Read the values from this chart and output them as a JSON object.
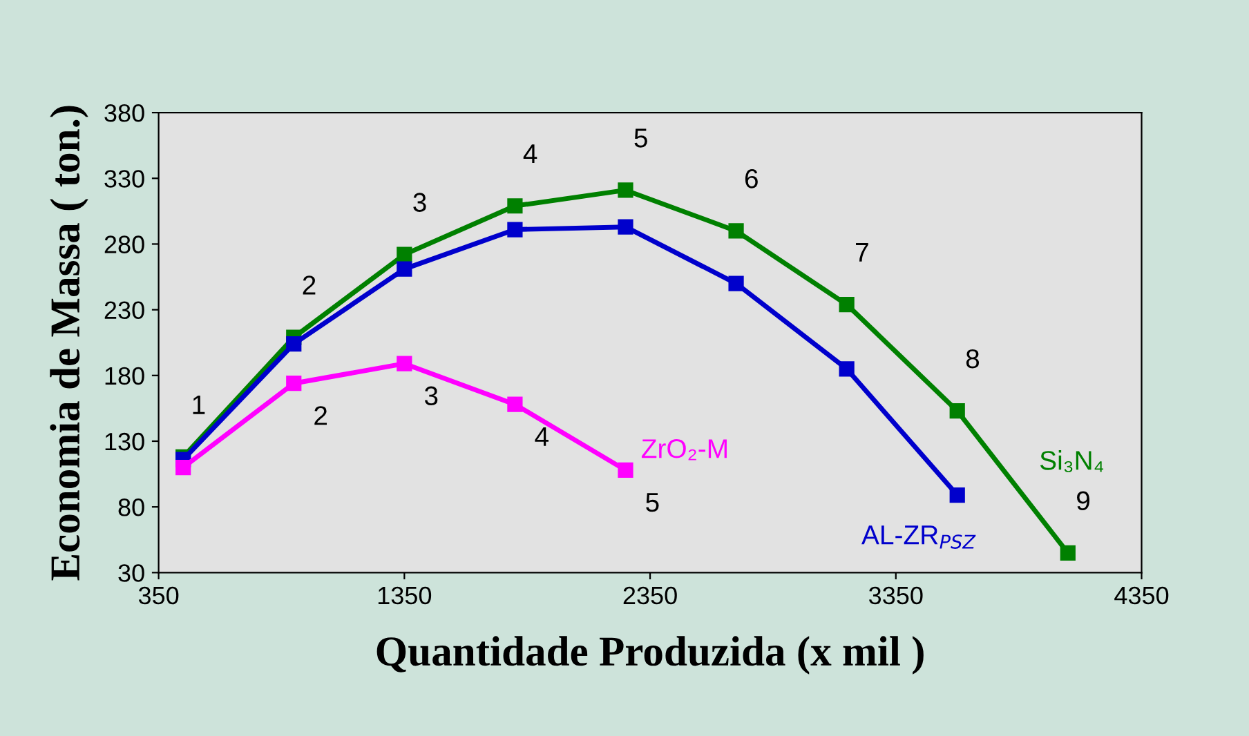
{
  "chart_data": {
    "type": "line",
    "xlabel": "Quantidade Produzida (x mil )",
    "ylabel": "Economia de Massa ( ton.)",
    "x": [
      450,
      900,
      1350,
      1800,
      2250,
      2700,
      3150,
      3600,
      4050
    ],
    "series": [
      {
        "name": "Si₃N₄",
        "color": "#008000",
        "values": [
          118,
          209,
          272,
          309,
          321,
          290,
          234,
          153,
          45
        ]
      },
      {
        "name": "AL-ZR$_{PSZ}$",
        "color": "#0000cc",
        "values": [
          116,
          204,
          261,
          291,
          293,
          250,
          185,
          89,
          null
        ]
      },
      {
        "name": "ZrO₂-M",
        "color": "#ff00ff",
        "values": [
          110,
          174,
          189,
          158,
          108,
          null,
          null,
          null,
          null
        ]
      }
    ],
    "annotations": [
      {
        "text": "1",
        "x": 450,
        "y": 118
      },
      {
        "text": "2",
        "x": 900,
        "y": 209
      },
      {
        "text": "3",
        "x": 1350,
        "y": 272
      },
      {
        "text": "4",
        "x": 1800,
        "y": 309
      },
      {
        "text": "5",
        "x": 2250,
        "y": 321
      },
      {
        "text": "6",
        "x": 2700,
        "y": 290
      },
      {
        "text": "7",
        "x": 3150,
        "y": 234
      },
      {
        "text": "8",
        "x": 3600,
        "y": 153
      },
      {
        "text": "9",
        "x": 4050,
        "y": 45
      },
      {
        "text": "2",
        "x": 900,
        "y": 174
      },
      {
        "text": "3",
        "x": 1350,
        "y": 189
      },
      {
        "text": "4",
        "x": 1800,
        "y": 158
      },
      {
        "text": "5",
        "x": 2250,
        "y": 108
      }
    ],
    "xlim": [
      350,
      4350
    ],
    "xticks": [
      350,
      1350,
      2350,
      3350,
      4350
    ],
    "ylim": [
      30,
      380
    ],
    "yticks": [
      30,
      80,
      130,
      180,
      230,
      280,
      330,
      380
    ],
    "marker": "square",
    "line_style": "solid",
    "grid": false,
    "legend": false
  }
}
